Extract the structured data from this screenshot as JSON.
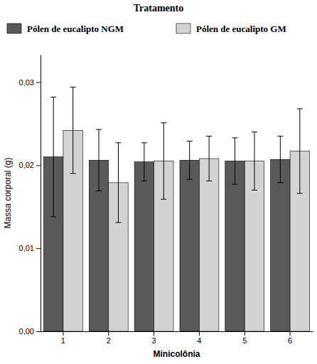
{
  "chart_data": {
    "type": "bar",
    "title": "Tratamento",
    "x_label": "Minicolônia",
    "y_label": "Massa corporal (g)",
    "categories": [
      "1",
      "2",
      "3",
      "4",
      "5",
      "6"
    ],
    "series": [
      {
        "name": "Pólen de eucalipto NGM",
        "color": "#595959",
        "values": [
          0.021,
          0.0206,
          0.0204,
          0.0206,
          0.0205,
          0.0207
        ],
        "errors": [
          0.0072,
          0.0037,
          0.0023,
          0.0023,
          0.0028,
          0.0028
        ]
      },
      {
        "name": "Pólen de eucalipto GM",
        "color": "#d3d3d3",
        "values": [
          0.0242,
          0.0179,
          0.0205,
          0.0208,
          0.0205,
          0.0217
        ],
        "errors": [
          0.0052,
          0.0048,
          0.0046,
          0.0027,
          0.0035,
          0.0051
        ]
      }
    ],
    "ylim": [
      0,
      0.0333
    ],
    "yticks": [
      {
        "value": 0,
        "label": "0,00"
      },
      {
        "value": 0.01,
        "label": "0,01"
      },
      {
        "value": 0.02,
        "label": "0,02"
      },
      {
        "value": 0.03,
        "label": "0,03"
      }
    ],
    "legend": "top",
    "grid": false
  }
}
